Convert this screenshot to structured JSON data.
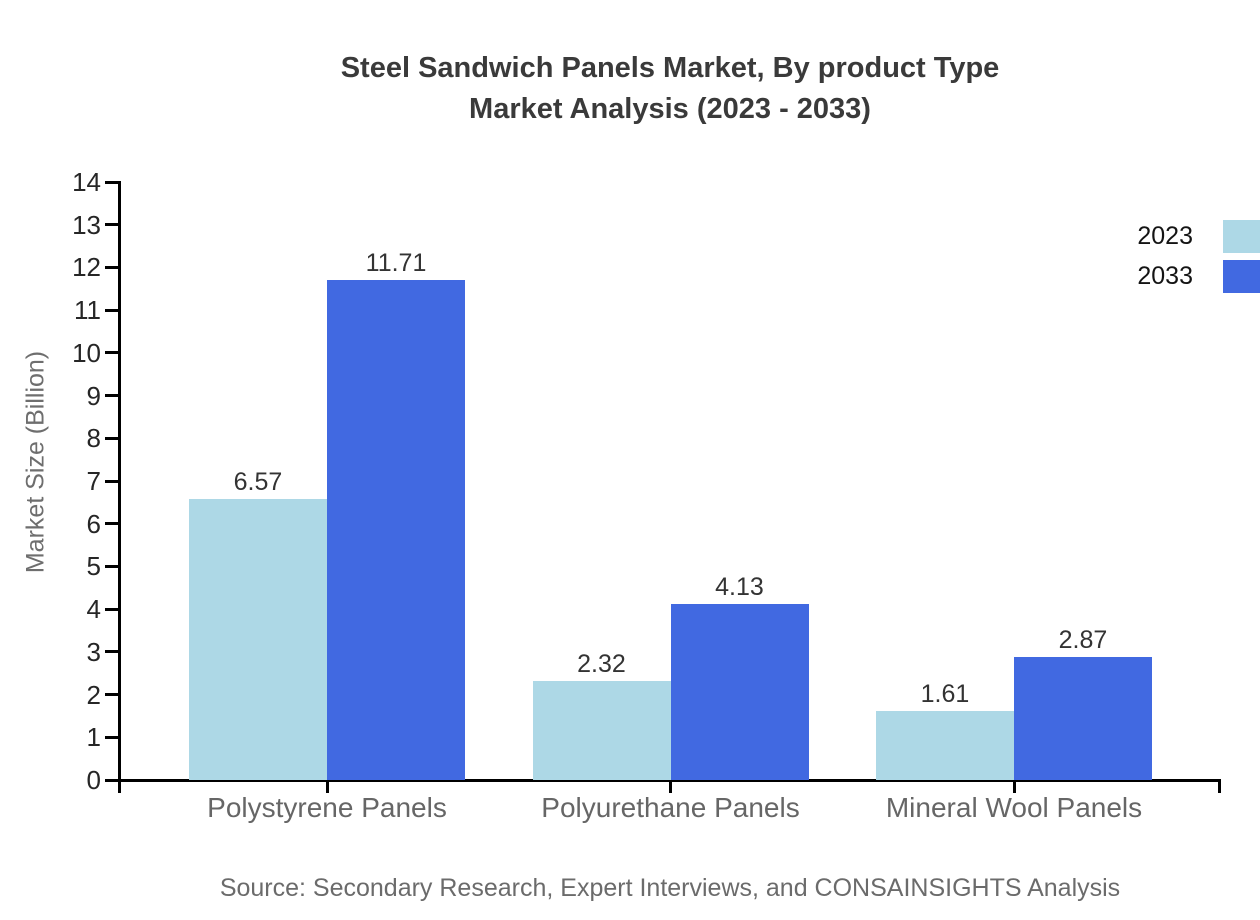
{
  "title": {
    "line1": "Steel Sandwich Panels Market, By product Type",
    "line2": "Market Analysis (2023 - 2033)"
  },
  "source": "Source: Secondary Research, Expert Interviews, and CONSAINSIGHTS Analysis",
  "legend": {
    "items": [
      {
        "label": "2023",
        "color": "#ADD8E6"
      },
      {
        "label": "2033",
        "color": "#4169E1"
      }
    ]
  },
  "colors": {
    "axis": "#000000",
    "title_text": "#3a3a3a",
    "tick_text": "#262626",
    "value_text": "#333333",
    "category_text": "#666666",
    "muted_text": "#6e6e6e"
  },
  "chart_data": {
    "type": "bar",
    "title": "Steel Sandwich Panels Market, By product Type Market Analysis (2023 - 2033)",
    "categories": [
      "Polystyrene Panels",
      "Polyurethane Panels",
      "Mineral Wool Panels"
    ],
    "series": [
      {
        "name": "2023",
        "color": "#ADD8E6",
        "values": [
          6.57,
          2.32,
          1.61
        ]
      },
      {
        "name": "2033",
        "color": "#4169E1",
        "values": [
          11.71,
          4.13,
          2.87
        ]
      }
    ],
    "xlabel": "",
    "ylabel": "Market Size (Billion)",
    "ylim": [
      0,
      14
    ],
    "ytick_step": 1,
    "grid": false,
    "legend_position": "top-right",
    "value_labels": true
  }
}
